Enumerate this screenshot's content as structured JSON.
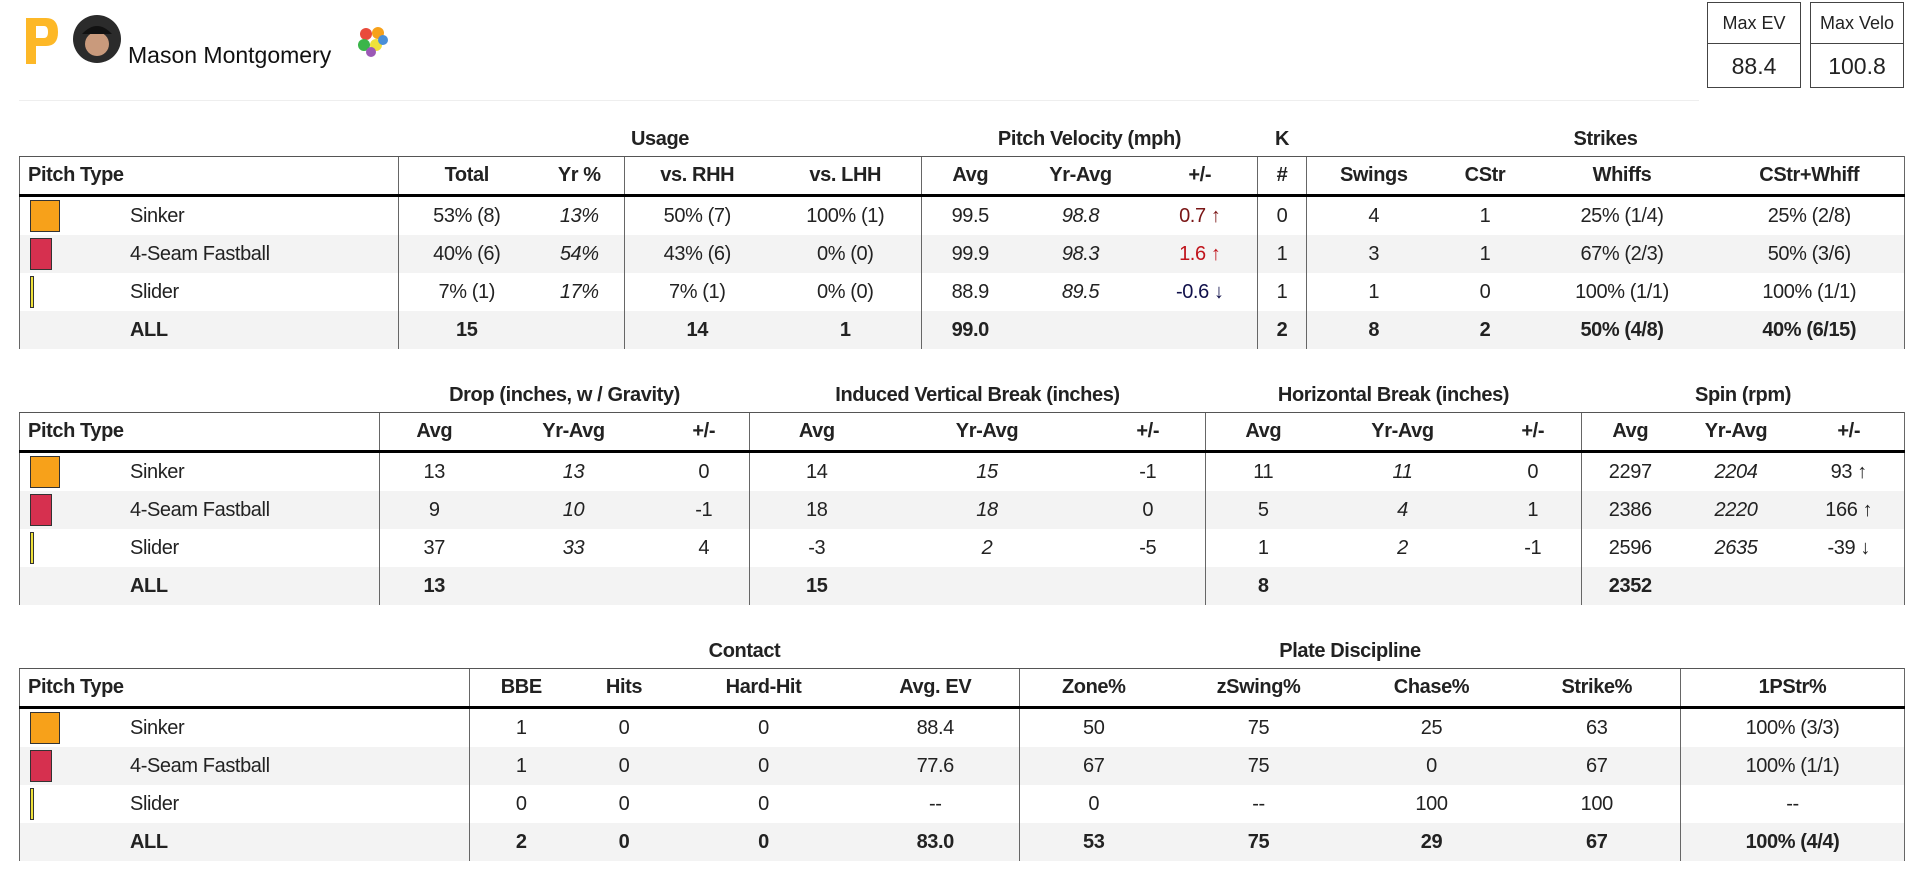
{
  "header": {
    "player": "Mason Montgomery",
    "stats": [
      {
        "label": "Max EV",
        "value": "88.4"
      },
      {
        "label": "Max Velo",
        "value": "100.8"
      }
    ]
  },
  "tables": [
    {
      "groups": [
        {
          "title": null,
          "span": 1
        },
        {
          "title": "Usage",
          "span": 4
        },
        {
          "title": "Pitch Velocity (mph)",
          "span": 3
        },
        {
          "title": "K",
          "span": 1
        },
        {
          "title": "Strikes",
          "span": 4
        }
      ],
      "columns": [
        "Pitch Type",
        "Total",
        "Yr %",
        "vs. RHH",
        "vs. LHH",
        "Avg",
        "Yr-Avg",
        "+/-",
        "#",
        "Swings",
        "CStr",
        "Whiffs",
        "CStr+Whiff"
      ],
      "rows": [
        {
          "pitch": "Sinker",
          "color": "#f7a11a",
          "cells": [
            "53% (8)",
            "13%",
            "50% (7)",
            "100% (1)",
            "99.5",
            "98.8",
            {
              "text": "0.7 ↑",
              "color": "#7a1616"
            },
            "0",
            "4",
            "1",
            "25% (1/4)",
            "25% (2/8)"
          ]
        },
        {
          "pitch": "4-Seam Fastball",
          "color": "#d6304f",
          "cells": [
            "40% (6)",
            "54%",
            "43% (6)",
            "0% (0)",
            "99.9",
            "98.3",
            {
              "text": "1.6 ↑",
              "color": "#c0141c"
            },
            "1",
            "3",
            "1",
            "67% (2/3)",
            "50% (3/6)"
          ]
        },
        {
          "pitch": "Slider",
          "color": "#efe13a",
          "cells": [
            "7% (1)",
            "17%",
            "7% (1)",
            "0% (0)",
            "88.9",
            "89.5",
            {
              "text": "-0.6 ↓",
              "color": "#10104a"
            },
            "1",
            "1",
            "0",
            "100% (1/1)",
            "100% (1/1)"
          ]
        },
        {
          "pitch": "ALL",
          "cells": [
            "15",
            null,
            "14",
            "1",
            "99.0",
            null,
            null,
            "2",
            "8",
            "2",
            "50% (4/8)",
            "40% (6/15)"
          ]
        }
      ]
    },
    {
      "groups": [
        {
          "title": null,
          "span": 1
        },
        {
          "title": "Drop (inches, w / Gravity)",
          "span": 3
        },
        {
          "title": "Induced Vertical Break (inches)",
          "span": 3
        },
        {
          "title": "Horizontal Break (inches)",
          "span": 3
        },
        {
          "title": "Spin (rpm)",
          "span": 3
        }
      ],
      "columns": [
        "Pitch Type",
        "Avg",
        "Yr-Avg",
        "+/-",
        "Avg",
        "Yr-Avg",
        "+/-",
        "Avg",
        "Yr-Avg",
        "+/-",
        "Avg",
        "Yr-Avg",
        "+/-"
      ],
      "rows": [
        {
          "pitch": "Sinker",
          "color": "#f7a11a",
          "cells": [
            "13",
            "13",
            "0",
            "14",
            "15",
            "-1",
            "11",
            "11",
            "0",
            "2297",
            "2204",
            "93 ↑"
          ]
        },
        {
          "pitch": "4-Seam Fastball",
          "color": "#d6304f",
          "cells": [
            "9",
            "10",
            "-1",
            "18",
            "18",
            "0",
            "5",
            "4",
            "1",
            "2386",
            "2220",
            "166 ↑"
          ]
        },
        {
          "pitch": "Slider",
          "color": "#efe13a",
          "cells": [
            "37",
            "33",
            "4",
            "-3",
            "2",
            "-5",
            "1",
            "2",
            "-1",
            "2596",
            "2635",
            "-39 ↓"
          ]
        },
        {
          "pitch": "ALL",
          "cells": [
            "13",
            null,
            null,
            "15",
            null,
            null,
            "8",
            null,
            null,
            "2352",
            null,
            null
          ]
        }
      ]
    },
    {
      "groups": [
        {
          "title": null,
          "span": 1
        },
        {
          "title": "Contact",
          "span": 4
        },
        {
          "title": "Plate Discipline",
          "span": 4
        },
        {
          "title": null,
          "span": 1
        }
      ],
      "columns": [
        "Pitch Type",
        "BBE",
        "Hits",
        "Hard-Hit",
        "Avg. EV",
        "Zone%",
        "zSwing%",
        "Chase%",
        "Strike%",
        "1PStr%"
      ],
      "rows": [
        {
          "pitch": "Sinker",
          "color": "#f7a11a",
          "cells": [
            "1",
            "0",
            "0",
            "88.4",
            "50",
            "75",
            "25",
            "63",
            "100% (3/3)"
          ]
        },
        {
          "pitch": "4-Seam Fastball",
          "color": "#d6304f",
          "cells": [
            "1",
            "0",
            "0",
            "77.6",
            "67",
            "75",
            "0",
            "67",
            "100% (1/1)"
          ]
        },
        {
          "pitch": "Slider",
          "color": "#efe13a",
          "cells": [
            "0",
            "0",
            "0",
            "--",
            "0",
            "--",
            "100",
            "100",
            "--"
          ]
        },
        {
          "pitch": "ALL",
          "cells": [
            "2",
            "0",
            "0",
            "83.0",
            "53",
            "75",
            "29",
            "67",
            "100% (4/4)"
          ]
        }
      ]
    }
  ]
}
